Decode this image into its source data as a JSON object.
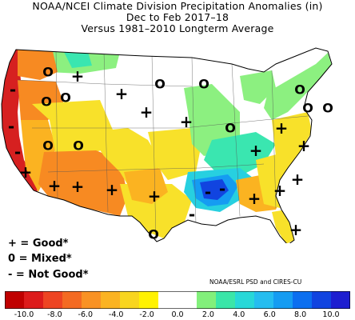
{
  "title": {
    "line1": "NOAA/NCEI Climate Division Precipitation Anomalies (in)",
    "line2": "Dec to Feb 2017–18",
    "line3": "Versus 1981–2010 Longterm Average"
  },
  "key": {
    "good": "+ = Good*",
    "mixed": "0 = Mixed*",
    "notgood": "- = Not Good*"
  },
  "credit": "NOAA/ESRL PSD and CIRES-CU",
  "colorbar": {
    "colors": [
      "#c00000",
      "#dd1b1b",
      "#ee4422",
      "#f46a22",
      "#f99224",
      "#fbb321",
      "#f8d51f",
      "#fff200",
      "#ffffff",
      "#ffffff",
      "#82f07b",
      "#3ae6a8",
      "#27d8d8",
      "#25bdf0",
      "#159cf2",
      "#0b6ff0",
      "#1144e0",
      "#1d1ed0"
    ],
    "tick_values": [
      "-10.0",
      "-8.0",
      "-6.0",
      "-4.0",
      "-2.0",
      "0.0",
      "2.0",
      "4.0",
      "6.0",
      "8.0",
      "10.0"
    ]
  },
  "map_colors": {
    "dry_strong": "#d62020",
    "dry_orange": "#f78a22",
    "dry_lightorange": "#fbb321",
    "dry_yellow": "#f8e12a",
    "neutral": "#ffffff",
    "wet_green": "#8cf080",
    "wet_teal": "#3ae6b0",
    "wet_cyan": "#27d0e0",
    "wet_blue": "#159cf2",
    "wet_deep": "#1144e0"
  },
  "markers": {
    "plus": "+",
    "zero": "O",
    "minus": "-"
  }
}
